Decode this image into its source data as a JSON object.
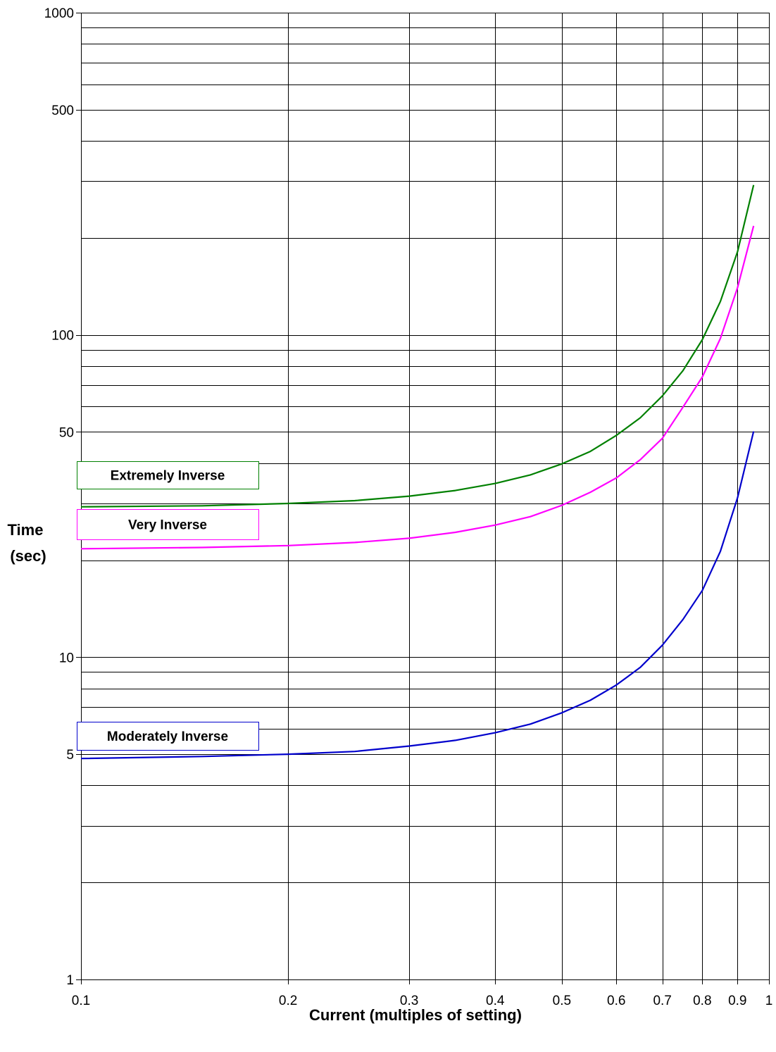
{
  "chart_data": {
    "type": "line",
    "xlabel": "Current (multiples of setting)",
    "ylabel": [
      "Time",
      "(sec)"
    ],
    "x_scale": "log",
    "y_scale": "log",
    "xlim": [
      0.1,
      1
    ],
    "ylim": [
      1,
      1000
    ],
    "x_ticks": [
      0.1,
      0.2,
      0.3,
      0.4,
      0.5,
      0.6,
      0.7,
      0.8,
      0.9,
      1
    ],
    "x_tick_labels": [
      "0.1",
      "0.2",
      "0.3",
      "0.4",
      "0.5",
      "0.6",
      "0.7",
      "0.8",
      "0.9",
      "1"
    ],
    "y_ticks": [
      1,
      5,
      10,
      50,
      100,
      500,
      1000
    ],
    "y_tick_labels": [
      "1",
      "5",
      "10",
      "50",
      "100",
      "500",
      "1000"
    ],
    "y_minor_gridlines": [
      2,
      3,
      4,
      6,
      7,
      8,
      9,
      20,
      30,
      40,
      60,
      70,
      80,
      90,
      200,
      300,
      400,
      600,
      700,
      800,
      900
    ],
    "grid": true,
    "legend": "inline labels on left side",
    "series": [
      {
        "name": "Extremely Inverse",
        "color": "#008000",
        "x": [
          0.1,
          0.15,
          0.2,
          0.25,
          0.3,
          0.35,
          0.4,
          0.45,
          0.5,
          0.55,
          0.6,
          0.65,
          0.7,
          0.75,
          0.8,
          0.85,
          0.9,
          0.95
        ],
        "y": [
          29.3,
          29.5,
          30.0,
          30.6,
          31.6,
          32.9,
          34.6,
          36.8,
          39.8,
          43.5,
          48.8,
          55.3,
          64.7,
          77.5,
          96.6,
          127,
          181,
          292
        ]
      },
      {
        "name": "Very Inverse",
        "color": "#ff00ff",
        "x": [
          0.1,
          0.15,
          0.2,
          0.25,
          0.3,
          0.35,
          0.4,
          0.45,
          0.5,
          0.55,
          0.6,
          0.65,
          0.7,
          0.75,
          0.8,
          0.85,
          0.9,
          0.95
        ],
        "y": [
          21.7,
          21.9,
          22.2,
          22.7,
          23.4,
          24.4,
          25.7,
          27.3,
          29.6,
          32.5,
          36.0,
          41.0,
          47.8,
          59.7,
          74.0,
          97.5,
          140,
          218
        ]
      },
      {
        "name": "Moderately Inverse",
        "color": "#0000cc",
        "x": [
          0.1,
          0.15,
          0.2,
          0.25,
          0.3,
          0.35,
          0.4,
          0.45,
          0.5,
          0.55,
          0.6,
          0.65,
          0.7,
          0.75,
          0.8,
          0.85,
          0.9,
          0.95
        ],
        "y": [
          4.85,
          4.92,
          5.0,
          5.1,
          5.3,
          5.52,
          5.83,
          6.2,
          6.72,
          7.35,
          8.2,
          9.3,
          10.9,
          13.1,
          16.1,
          21.3,
          31.2,
          50.2
        ]
      }
    ]
  }
}
